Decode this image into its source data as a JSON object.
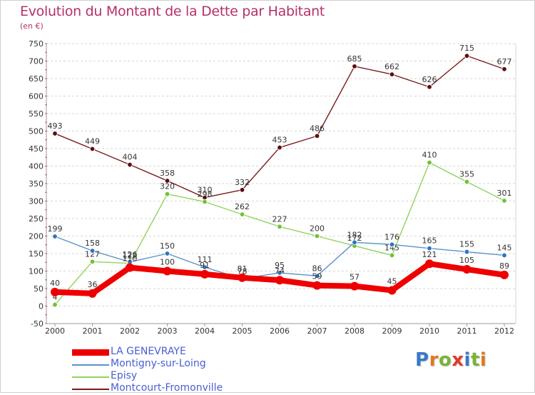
{
  "title": "Evolution du Montant de la Dette par Habitant",
  "unit_label": "(en €)",
  "logo": {
    "text": "Proxiti",
    "letter_colors": [
      "#3a78c8",
      "#e0791e",
      "#7ab33a",
      "#e23b2a",
      "#3a78c8",
      "#7ab33a",
      "#e0791e"
    ]
  },
  "chart_data": {
    "type": "line",
    "title": "Evolution du Montant de la Dette par Habitant",
    "ylabel": "(en €)",
    "xlabel": "",
    "x": [
      "2000",
      "2001",
      "2002",
      "2003",
      "2004",
      "2005",
      "2006",
      "2007",
      "2008",
      "2009",
      "2010",
      "2011",
      "2012"
    ],
    "ylim": [
      -50,
      750
    ],
    "yticks": [
      "-50",
      "0",
      "50",
      "100",
      "150",
      "200",
      "250",
      "300",
      "350",
      "400",
      "450",
      "500",
      "550",
      "600",
      "650",
      "700",
      "750"
    ],
    "grid": "horizontal dashed",
    "legend_position": "bottom-left",
    "series": [
      {
        "name": "Montcourt-Fromonville",
        "color": "#7b1b1b",
        "marker": "#5a1010",
        "thick": false,
        "values": [
          493,
          449,
          404,
          358,
          310,
          332,
          453,
          486,
          685,
          662,
          626,
          715,
          677
        ],
        "labels": [
          "493",
          "449",
          "404",
          "358",
          "310",
          "332",
          "453",
          "486",
          "685",
          "662",
          "626",
          "715",
          "677"
        ]
      },
      {
        "name": "Episy",
        "color": "#8ed45a",
        "marker": "#6fc236",
        "thick": false,
        "values": [
          4,
          127,
          122,
          320,
          298,
          262,
          227,
          200,
          172,
          145,
          410,
          355,
          301
        ],
        "labels": [
          "4",
          "127",
          "122",
          "320",
          "298",
          "262",
          "227",
          "200",
          "172",
          "145",
          "410",
          "355",
          "301"
        ]
      },
      {
        "name": "Montigny-sur-Loing",
        "color": "#5a93c8",
        "marker": "#2f74bf",
        "thick": false,
        "values": [
          199,
          158,
          126,
          150,
          111,
          78,
          95,
          86,
          182,
          176,
          165,
          155,
          145
        ],
        "labels": [
          "199",
          "158",
          "126",
          "150",
          "111",
          "78",
          "95",
          "86",
          "182",
          "176",
          "165",
          "155",
          "145"
        ]
      },
      {
        "name": "LA GENEVRAYE",
        "color": "#ee0000",
        "marker": "#ee0000",
        "thick": true,
        "values": [
          40,
          36,
          110,
          100,
          91,
          81,
          74,
          59,
          57,
          45,
          121,
          105,
          89
        ],
        "labels": [
          "40",
          "36",
          "110",
          "100",
          "91",
          "81",
          "74",
          "59",
          "57",
          "45",
          "121",
          "105",
          "89"
        ]
      }
    ]
  },
  "legend": [
    {
      "label": "LA GENEVRAYE",
      "color": "#ee0000",
      "thick": true
    },
    {
      "label": "Montigny-sur-Loing",
      "color": "#5a93c8",
      "thick": false
    },
    {
      "label": "Episy",
      "color": "#8ed45a",
      "thick": false
    },
    {
      "label": "Montcourt-Fromonville",
      "color": "#7b1b1b",
      "thick": false
    }
  ]
}
